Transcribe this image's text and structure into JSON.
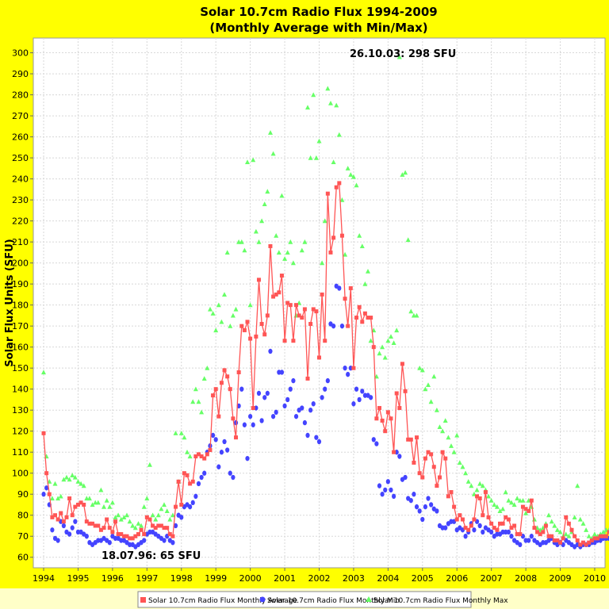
{
  "chart_data": {
    "type": "scatter",
    "title": "Solar 10.7cm Radio Flux 1994-2009",
    "subtitle": "(Monthly Average with Min/Max)",
    "xlabel": "",
    "ylabel": "Solar Flux Units (SFU)",
    "xlim": [
      1993.7,
      2010.3
    ],
    "ylim": [
      55,
      307
    ],
    "xticks": [
      1994,
      1995,
      1996,
      1997,
      1998,
      1999,
      2000,
      2001,
      2002,
      2003,
      2004,
      2005,
      2006,
      2007,
      2008,
      2009,
      2010
    ],
    "yticks": [
      60,
      70,
      80,
      90,
      100,
      110,
      120,
      130,
      140,
      150,
      160,
      170,
      180,
      190,
      200,
      210,
      220,
      230,
      240,
      250,
      260,
      270,
      280,
      290,
      300
    ],
    "grid": true,
    "legend_position": "bottom",
    "annotations": [
      {
        "text": "26.10.03: 298 SFU",
        "x": 2003.82,
        "y": 298
      },
      {
        "text": "18.07.96: 65 SFU",
        "x": 1996.54,
        "y": 65
      }
    ],
    "series": [
      {
        "name": "Solar 10.7cm Radio Flux Monthly Average",
        "style": "line-square",
        "color": "#FF5555",
        "values": [
          119,
          100,
          90,
          79,
          80,
          78,
          81,
          77,
          79,
          88,
          80,
          84,
          85,
          86,
          85,
          77,
          76,
          76,
          75,
          75,
          73,
          74,
          78,
          74,
          72,
          77,
          71,
          71,
          70,
          70,
          69,
          69,
          70,
          71,
          73,
          71,
          79,
          78,
          75,
          74,
          75,
          75,
          74,
          74,
          71,
          70,
          84,
          96,
          85,
          100,
          99,
          95,
          96,
          108,
          109,
          108,
          107,
          109,
          111,
          137,
          140,
          127,
          143,
          149,
          146,
          140,
          126,
          117,
          148,
          170,
          168,
          172,
          164,
          131,
          165,
          192,
          171,
          166,
          175,
          208,
          184,
          185,
          186,
          194,
          163,
          181,
          180,
          163,
          180,
          175,
          174,
          178,
          145,
          171,
          178,
          177,
          155,
          185,
          163,
          233,
          205,
          212,
          236,
          238,
          213,
          183,
          170,
          188,
          150,
          174,
          179,
          172,
          176,
          174,
          174,
          160,
          126,
          131,
          125,
          120,
          129,
          126,
          110,
          138,
          131,
          152,
          139,
          116,
          116,
          105,
          117,
          100,
          98,
          107,
          110,
          109,
          103,
          94,
          98,
          110,
          107,
          89,
          91,
          84,
          78,
          80,
          78,
          74,
          73,
          75,
          78,
          89,
          88,
          80,
          91,
          79,
          76,
          74,
          73,
          76,
          76,
          79,
          78,
          74,
          75,
          71,
          71,
          84,
          83,
          82,
          87,
          74,
          72,
          71,
          72,
          75,
          70,
          70,
          68,
          68,
          67,
          69,
          79,
          76,
          73,
          70,
          68,
          66,
          67,
          66,
          67,
          68,
          69,
          69,
          70,
          70,
          70,
          72,
          69,
          69,
          69,
          69,
          68,
          69,
          70,
          74,
          76
        ],
        "x_start": 1994.0,
        "x_step": 0.08333
      },
      {
        "name": "Solar 10.7cm Radio Flux Monthly Min",
        "style": "points-circle",
        "color": "#4444FF",
        "values": [
          90,
          93,
          85,
          73,
          69,
          68,
          77,
          75,
          72,
          71,
          74,
          77,
          72,
          72,
          71,
          70,
          67,
          66,
          67,
          68,
          68,
          69,
          68,
          67,
          70,
          69,
          69,
          68,
          68,
          67,
          66,
          66,
          65,
          66,
          67,
          68,
          71,
          72,
          72,
          71,
          70,
          69,
          68,
          70,
          68,
          67,
          75,
          80,
          79,
          84,
          85,
          84,
          86,
          89,
          95,
          98,
          100,
          110,
          113,
          118,
          116,
          103,
          110,
          115,
          111,
          100,
          98,
          124,
          132,
          140,
          123,
          107,
          127,
          123,
          131,
          138,
          125,
          136,
          138,
          158,
          127,
          129,
          148,
          148,
          132,
          135,
          140,
          144,
          127,
          130,
          131,
          124,
          118,
          130,
          133,
          117,
          115,
          136,
          140,
          144,
          171,
          170,
          189,
          188,
          170,
          150,
          147,
          150,
          133,
          140,
          135,
          139,
          137,
          137,
          136,
          116,
          114,
          94,
          90,
          92,
          96,
          92,
          89,
          110,
          108,
          97,
          98,
          88,
          87,
          90,
          84,
          82,
          78,
          84,
          88,
          85,
          83,
          82,
          75,
          74,
          74,
          76,
          77,
          77,
          73,
          74,
          73,
          70,
          72,
          76,
          73,
          77,
          75,
          72,
          74,
          73,
          72,
          70,
          71,
          71,
          72,
          72,
          72,
          70,
          68,
          67,
          66,
          70,
          68,
          68,
          70,
          68,
          67,
          66,
          67,
          67,
          68,
          69,
          67,
          66,
          67,
          66,
          68,
          67,
          66,
          65,
          66,
          65,
          66,
          66,
          66,
          67,
          67,
          68,
          68,
          69,
          69,
          69,
          68,
          68,
          68,
          69,
          67,
          67,
          68,
          68,
          70
        ],
        "x_start": 1994.0,
        "x_step": 0.08333
      },
      {
        "name": "Solar 10.7cm Radio Flux Monthly Max",
        "style": "points-triangle",
        "color": "#66FF66",
        "values": [
          148,
          108,
          96,
          88,
          95,
          88,
          89,
          97,
          98,
          97,
          99,
          98,
          96,
          95,
          94,
          88,
          88,
          85,
          86,
          86,
          92,
          84,
          87,
          84,
          86,
          79,
          80,
          78,
          79,
          80,
          77,
          75,
          74,
          76,
          75,
          84,
          88,
          104,
          80,
          78,
          80,
          83,
          85,
          82,
          78,
          80,
          119,
          96,
          119,
          117,
          110,
          108,
          134,
          140,
          134,
          129,
          145,
          150,
          178,
          176,
          168,
          180,
          172,
          185,
          205,
          170,
          175,
          178,
          210,
          210,
          206,
          248,
          180,
          249,
          215,
          210,
          220,
          228,
          234,
          262,
          252,
          213,
          205,
          232,
          202,
          205,
          210,
          200,
          175,
          181,
          206,
          210,
          274,
          250,
          280,
          250,
          258,
          200,
          220,
          283,
          276,
          248,
          275,
          261,
          230,
          204,
          245,
          242,
          241,
          237,
          213,
          208,
          190,
          196,
          163,
          168,
          146,
          157,
          160,
          155,
          163,
          165,
          162,
          168,
          298,
          242,
          243,
          211,
          177,
          175,
          175,
          150,
          149,
          140,
          142,
          134,
          146,
          130,
          122,
          120,
          125,
          117,
          113,
          110,
          118,
          105,
          103,
          100,
          96,
          94,
          90,
          92,
          95,
          94,
          92,
          89,
          87,
          85,
          84,
          82,
          83,
          91,
          87,
          86,
          85,
          88,
          87,
          87,
          81,
          87,
          84,
          78,
          74,
          73,
          74,
          76,
          80,
          77,
          75,
          73,
          72,
          70,
          71,
          70,
          72,
          79,
          94,
          78,
          76,
          73,
          70,
          69,
          71,
          70,
          71,
          72,
          73,
          73,
          74,
          72,
          71,
          73,
          72,
          71,
          72,
          78,
          87
        ]
      }
    ]
  }
}
